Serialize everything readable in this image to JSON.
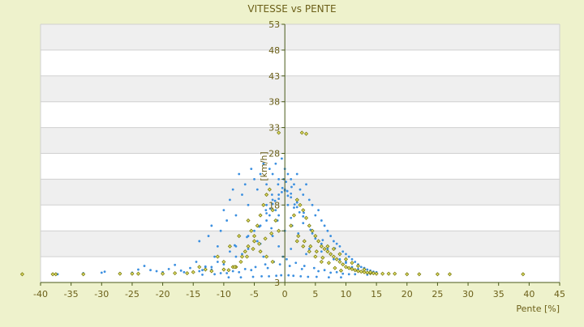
{
  "colors": {
    "page_background": "#eef2cc",
    "band_light": "#ffffff",
    "band_dark": "#efefef",
    "grid_line": "#d0d0d0",
    "axis_line": "#4a5a1a",
    "text": "#6b5f18",
    "series_1": "#3b8fe0",
    "series_2": "#7a7a10",
    "series_2_fill": "#e6e46a"
  },
  "chart_data": {
    "type": "scatter",
    "title": "VITESSE vs PENTE",
    "xlabel": "Pente [%]",
    "ylabel": "[km/h]",
    "xlim": [
      -40,
      45
    ],
    "ylim": [
      3,
      53
    ],
    "x_ticks": [
      -40,
      -35,
      -30,
      -25,
      -20,
      -15,
      -10,
      -5,
      0,
      5,
      10,
      15,
      20,
      25,
      30,
      35,
      40,
      45
    ],
    "y_ticks": [
      3,
      8,
      13,
      18,
      23,
      28,
      33,
      38,
      43,
      48,
      53
    ],
    "y_tick_labels": [
      {
        "value": 3,
        "label": "3"
      },
      {
        "value": 18,
        "label": "18"
      },
      {
        "value": 28,
        "label": "28"
      },
      {
        "value": 33,
        "label": "33"
      },
      {
        "value": 38,
        "label": "38"
      },
      {
        "value": 43,
        "label": "43"
      },
      {
        "value": 48,
        "label": "48"
      },
      {
        "value": 53,
        "label": "53"
      }
    ],
    "grid": true,
    "legend": "none",
    "series": [
      {
        "marker": "dot",
        "x": [
          -37.5,
          -37.2,
          -33,
          -30,
          -29.5,
          -27,
          -25,
          -24,
          -23,
          -22,
          -21,
          -20,
          -19,
          -18,
          -17,
          -16.5,
          -15.5,
          -14.5,
          -14,
          -13.5,
          -13,
          -12.5,
          -12,
          -11.5,
          -11,
          -10.5,
          -10,
          -9.5,
          -9,
          -8.5,
          -8,
          -7.5,
          -7,
          -6.5,
          -6,
          -5.5,
          -5,
          -4.5,
          -4,
          -3.5,
          -3,
          -2.5,
          -2,
          -1.5,
          -1,
          -0.5,
          0,
          0.5,
          1,
          1.5,
          2,
          2.5,
          3,
          3.5,
          4,
          4.5,
          5,
          5.5,
          6,
          6.5,
          7,
          7.5,
          8,
          8.5,
          9,
          9.5,
          10,
          10.5,
          11,
          11.5,
          12,
          12.5,
          13,
          13.5,
          14,
          14.5,
          15,
          -3,
          -2,
          -1,
          0,
          1,
          2,
          -2.5,
          -1.5,
          0.5,
          1.5,
          -4,
          -3,
          -1,
          1,
          3,
          -6,
          -5,
          -4.5,
          4.5,
          5,
          -9,
          -8,
          -7,
          6,
          7,
          8,
          -11,
          -10,
          9,
          10,
          11,
          -13,
          -12,
          12,
          13,
          -2,
          0,
          2,
          -1,
          1,
          -3.5,
          3.5,
          -0.5,
          0.5,
          -1.2,
          1.2,
          -2.2,
          2.2,
          -4,
          4,
          -6,
          6,
          -8,
          8,
          -10,
          10,
          -12,
          12,
          -14,
          14,
          -0.8,
          0.8,
          -2.8,
          2.8,
          -5.5,
          5.5,
          -7.5,
          7.5,
          -9.5,
          9.5,
          -11.5,
          11.5,
          -13.5,
          13.5,
          -0.3,
          0.3,
          -1.8,
          1.8,
          -3.2,
          3.2,
          -4.8,
          4.8,
          -6.5,
          6.5,
          -8.5,
          8.5,
          -10.5,
          10.5,
          -0.6,
          0.6,
          -1.4,
          1.4,
          -2.6,
          2.6,
          -3.8,
          3.8,
          -5.2,
          5.2,
          -7.2,
          7.2,
          -9.2,
          9.2,
          -1.1,
          1.1,
          -2.1,
          2.1,
          -3.1,
          3.1,
          -0.2,
          0.2,
          0,
          -1,
          1,
          -2,
          2,
          -3,
          3,
          -0.4,
          0.4,
          -1.6,
          1.6,
          -2.4,
          2.4,
          -4.2,
          4.2,
          -6.2,
          6.2,
          -8.2,
          8.2
        ],
        "y": [
          4.6,
          4.6,
          4.8,
          4.9,
          5.1,
          4.8,
          4.9,
          5.5,
          6.2,
          5.4,
          5.2,
          5.0,
          5.6,
          6.4,
          5.3,
          5.0,
          5.8,
          7.0,
          11.0,
          5.4,
          6.1,
          12.0,
          14.0,
          8.0,
          10.0,
          13.0,
          17.0,
          15.0,
          19.0,
          21.0,
          16.0,
          24.0,
          20.0,
          22.0,
          18.0,
          25.0,
          23.0,
          21.0,
          24.0,
          26.0,
          22.0,
          25.0,
          24.0,
          26.0,
          23.0,
          27.0,
          25.0,
          24.0,
          23.0,
          22.0,
          24.0,
          21.0,
          20.0,
          22.0,
          19.0,
          18.0,
          16.0,
          17.0,
          15.0,
          14.0,
          13.0,
          12.0,
          11.0,
          10.5,
          10.0,
          9.0,
          8.5,
          8.0,
          7.5,
          7.0,
          6.5,
          6.0,
          5.8,
          5.5,
          5.3,
          5.1,
          5.0,
          18.0,
          19.0,
          20.0,
          21.0,
          19.5,
          18.5,
          16.0,
          17.0,
          18.0,
          17.5,
          14.0,
          15.0,
          16.0,
          15.5,
          14.5,
          12.0,
          13.0,
          11.0,
          12.5,
          11.5,
          9.0,
          10.0,
          8.5,
          10.5,
          9.5,
          8.0,
          7.0,
          6.5,
          7.5,
          7.0,
          6.0,
          6.0,
          5.5,
          6.2,
          5.8,
          12.0,
          13.0,
          11.0,
          10.0,
          9.5,
          8.0,
          8.5,
          20.5,
          19.8,
          15.0,
          14.0,
          13.5,
          12.5,
          10.5,
          9.5,
          9.5,
          9.0,
          8.0,
          7.5,
          7.0,
          6.8,
          6.0,
          5.6,
          5.2,
          5.1,
          6.5,
          6.2,
          5.8,
          5.6,
          5.4,
          5.2,
          5.0,
          4.9,
          4.8,
          4.7,
          4.6,
          4.6,
          4.5,
          4.5,
          8.0,
          7.5,
          7.0,
          6.8,
          6.5,
          6.2,
          6.0,
          5.8,
          5.6,
          5.4,
          5.2,
          5.0,
          4.8,
          4.6,
          4.4,
          4.4,
          4.3,
          4.3,
          4.2,
          4.2,
          4.2,
          4.1,
          4.1,
          4.1,
          4.0,
          4.0,
          4.0,
          4.0,
          22.0,
          21.5,
          20.0,
          19.0,
          17.0,
          16.5,
          23.0,
          22.5,
          20.8,
          19.2,
          20.2,
          18.2,
          17.6,
          16.4,
          15.8,
          21.3,
          20.7,
          18.8,
          18.1,
          17.3,
          16.6,
          13.8,
          13.2,
          11.8,
          11.2,
          10.2,
          9.6
        ],
        "name": ""
      },
      {
        "marker": "diamond",
        "x": [
          -43,
          -38,
          -37.5,
          -33,
          -27,
          -25,
          -24,
          -20,
          -18,
          -16,
          -15,
          -12,
          -10,
          -8.5,
          -7,
          -6,
          -5,
          -4.5,
          -4,
          -3.5,
          -3,
          -2.5,
          -2,
          -1.5,
          -1,
          1,
          1.5,
          2,
          2.5,
          3,
          3.5,
          4,
          4.5,
          5,
          5.5,
          6,
          6.5,
          7,
          7.5,
          8,
          8.5,
          9,
          9.5,
          10,
          10.5,
          11,
          11.5,
          12,
          12.5,
          13,
          13.5,
          14,
          14.5,
          15,
          16,
          17,
          18,
          20,
          22,
          25,
          27,
          39,
          2.8,
          -1,
          3.5,
          -6,
          -5.5,
          -5,
          -4,
          -3,
          -2,
          2,
          3,
          4,
          5,
          6,
          -7.5,
          -6.5,
          7,
          8,
          -9,
          9,
          10,
          11,
          12,
          -11,
          -10,
          -8,
          -14,
          -13,
          13,
          14,
          -2.2,
          2.2,
          -3.2,
          3.2,
          -4.2,
          4.2,
          -5.2,
          5.2,
          -6.2,
          6.2,
          -7.2,
          7.2,
          -8.2,
          8.2,
          -9.2,
          9.2
        ],
        "y": [
          4.6,
          4.6,
          4.6,
          4.6,
          4.7,
          4.7,
          4.7,
          4.7,
          4.8,
          4.8,
          5.0,
          5.2,
          5.5,
          6.0,
          8.0,
          10.0,
          12.0,
          14.0,
          16.0,
          18.0,
          20.0,
          21.0,
          17.0,
          15.0,
          13.0,
          14.0,
          16.0,
          19.0,
          18.0,
          17.0,
          15.5,
          14.0,
          13.0,
          12.0,
          11.0,
          10.0,
          9.5,
          9.0,
          8.5,
          8.0,
          7.5,
          7.0,
          6.5,
          6.0,
          5.8,
          5.6,
          5.4,
          5.2,
          5.1,
          5.0,
          4.9,
          4.8,
          4.8,
          4.7,
          4.7,
          4.7,
          4.7,
          4.6,
          4.6,
          4.6,
          4.6,
          4.6,
          32.0,
          32.0,
          31.8,
          15.0,
          13.0,
          11.0,
          9.0,
          8.0,
          7.0,
          11.0,
          10.0,
          9.0,
          8.0,
          7.0,
          12.0,
          9.0,
          10.0,
          9.5,
          10.0,
          8.5,
          7.5,
          6.8,
          6.2,
          8.0,
          7.0,
          6.0,
          6.0,
          5.5,
          5.5,
          5.0,
          12.5,
          12.0,
          11.5,
          11.0,
          10.5,
          10.0,
          9.5,
          9.0,
          8.0,
          7.8,
          7.0,
          6.8,
          6.0,
          5.8,
          5.4,
          5.3
        ],
        "name": ""
      }
    ]
  }
}
